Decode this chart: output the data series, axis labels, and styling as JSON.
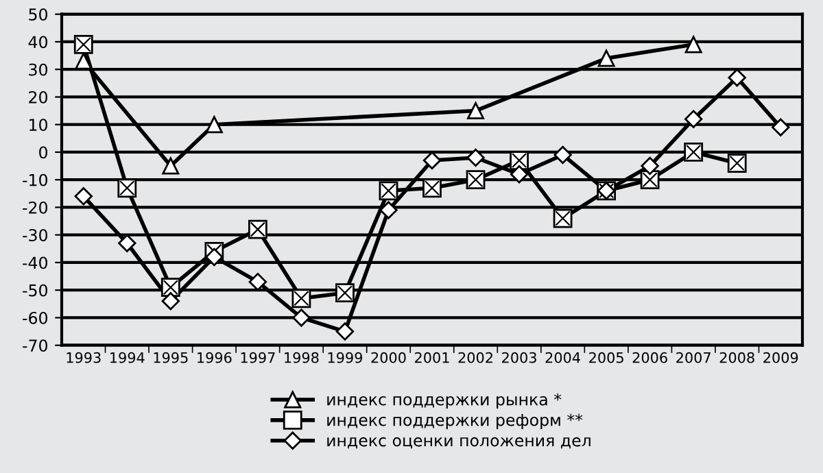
{
  "chart_data": {
    "type": "line",
    "categories": [
      "1993",
      "1994",
      "1995",
      "1996",
      "1997",
      "1998",
      "1999",
      "2000",
      "2001",
      "2002",
      "2003",
      "2004",
      "2005",
      "2006",
      "2007",
      "2008",
      "2009"
    ],
    "series": [
      {
        "name": "индекс поддержки рынка *",
        "color": "#000000",
        "marker": "triangle",
        "values": [
          33,
          null,
          -5,
          10,
          null,
          null,
          null,
          null,
          null,
          15,
          null,
          null,
          34,
          null,
          39,
          null,
          null
        ]
      },
      {
        "name": "индекс поддержки реформ **",
        "color": "#000000",
        "marker": "square",
        "values": [
          39,
          -13,
          -49,
          -36,
          -28,
          -53,
          -51,
          -14,
          -13,
          -10,
          -3,
          -24,
          -14,
          -10,
          0,
          -4,
          null
        ]
      },
      {
        "name": "индекс оценки положения дел",
        "color": "#000000",
        "marker": "diamond",
        "values": [
          -16,
          -33,
          -54,
          -38,
          -47,
          -60,
          -65,
          -21,
          -3,
          -2,
          -8,
          -1,
          -14,
          -5,
          12,
          27,
          9
        ]
      }
    ],
    "ylim": [
      -70,
      50
    ],
    "yticks": [
      -70,
      -60,
      -50,
      -40,
      -30,
      -20,
      -10,
      0,
      10,
      20,
      30,
      40,
      50
    ],
    "grid": "y",
    "legend": "bottom",
    "line_style": "solid"
  }
}
